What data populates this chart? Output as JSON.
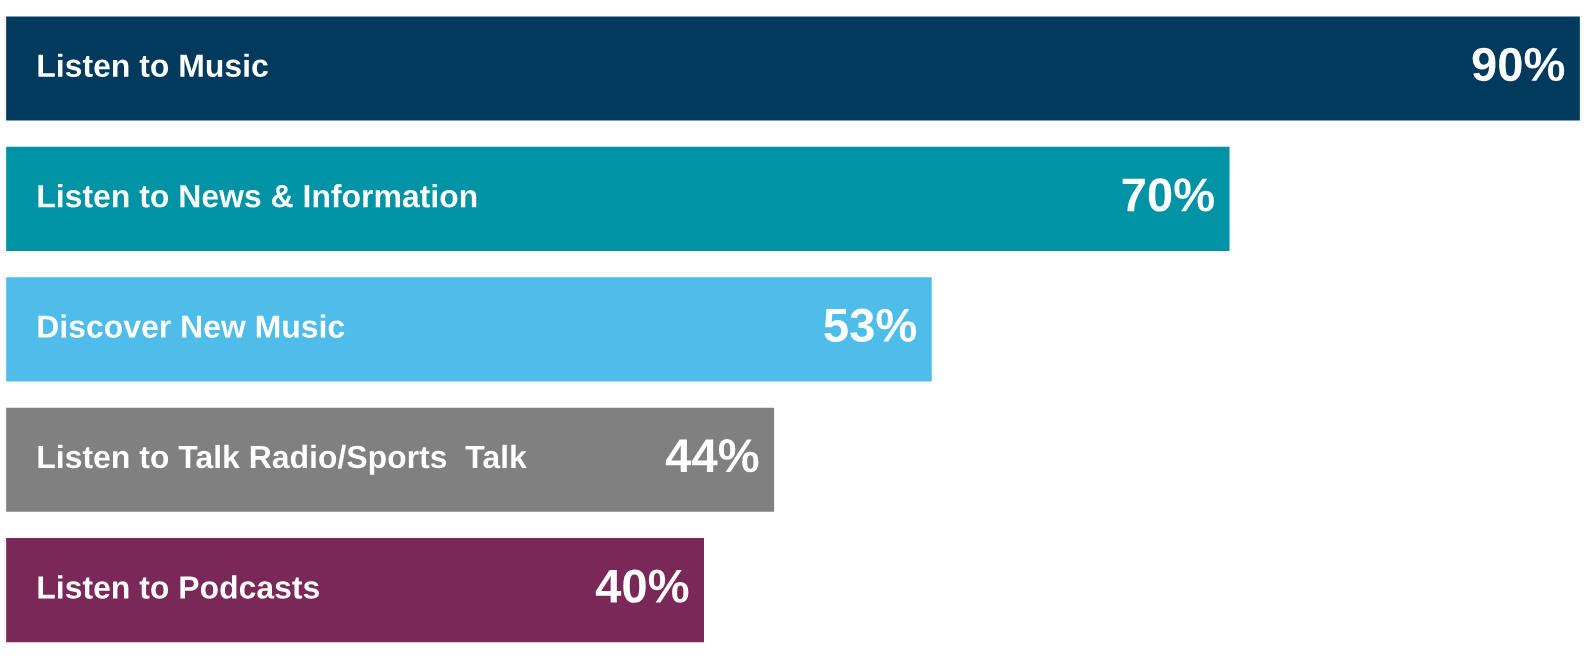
{
  "chart_data": {
    "type": "bar",
    "orientation": "horizontal",
    "categories": [
      "Listen to Music",
      "Listen to News & Information",
      "Discover New Music",
      "Listen to Talk Radio/Sports  Talk",
      "Listen to Podcasts"
    ],
    "values": [
      90,
      70,
      53,
      44,
      40
    ],
    "colors": [
      "#023a5e",
      "#0093a6",
      "#4fbde9",
      "#808080",
      "#7a2857"
    ],
    "value_labels": [
      "90%",
      "70%",
      "53%",
      "44%",
      "40%"
    ]
  }
}
